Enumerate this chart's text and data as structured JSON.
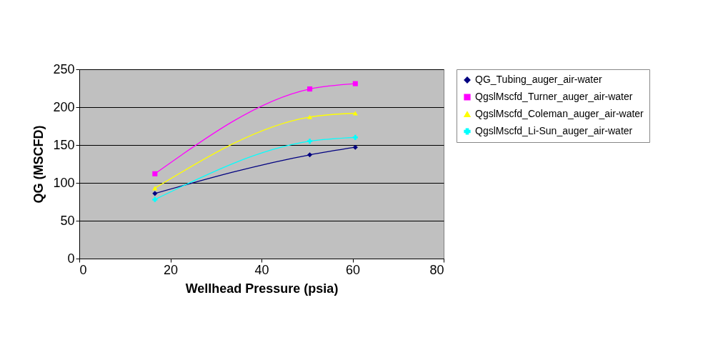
{
  "chart_data": {
    "type": "line",
    "xlabel": "Wellhead Pressure (psia)",
    "ylabel": "QG (MSCFD)",
    "xlim": [
      0,
      80
    ],
    "xticks": [
      0,
      20,
      40,
      60,
      80
    ],
    "ylim": [
      0,
      250
    ],
    "yticks": [
      0,
      50,
      100,
      150,
      200,
      250
    ],
    "grid": "y",
    "legend": "right",
    "line_style": "solid",
    "series": [
      {
        "name": "QG_Tubing_auger_air-water",
        "color": "#000080",
        "marker": "diamond",
        "x": [
          16.6,
          50.6,
          60.6
        ],
        "values": [
          86,
          137,
          147
        ]
      },
      {
        "name": "QgslMscfd_Turner_auger_air-water",
        "color": "#ff00ff",
        "marker": "square",
        "x": [
          16.6,
          50.6,
          60.6
        ],
        "values": [
          112,
          224,
          231
        ]
      },
      {
        "name": "QgslMscfd_Coleman_auger_air-water",
        "color": "#ffff00",
        "marker": "triangle",
        "x": [
          16.6,
          50.6,
          60.6
        ],
        "values": [
          93,
          187,
          192
        ]
      },
      {
        "name": "QgslMscfd_Li-Sun_auger_air-water",
        "color": "#00ffff",
        "marker": "cross",
        "x": [
          16.6,
          50.6,
          60.6
        ],
        "values": [
          78,
          155,
          160
        ]
      }
    ]
  }
}
